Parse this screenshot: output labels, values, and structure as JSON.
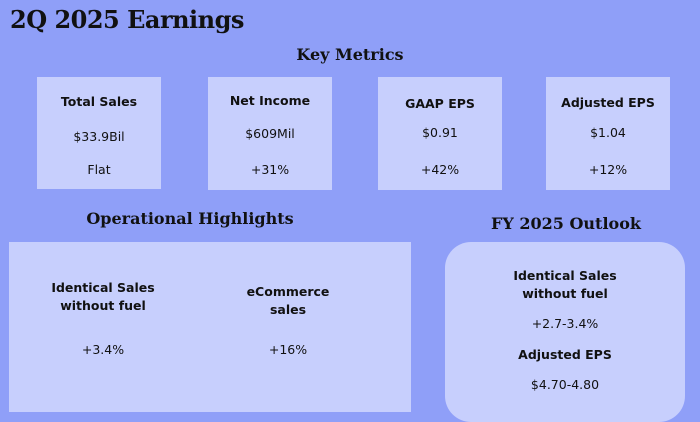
{
  "title": "2Q 2025 Earnings",
  "key_metrics": {
    "heading": "Key Metrics",
    "cards": [
      {
        "label": "Total Sales",
        "value": "$33.9Bil",
        "change": "Flat"
      },
      {
        "label": "Net Income",
        "value": "$609Mil",
        "change": "+31%"
      },
      {
        "label": "GAAP EPS",
        "value": "$0.91",
        "change": "+42%"
      },
      {
        "label": "Adjusted EPS",
        "value": "$1.04",
        "change": "+12%"
      }
    ]
  },
  "operational": {
    "heading": "Operational Highlights",
    "items": [
      {
        "label_line1": "Identical Sales",
        "label_line2": "without fuel",
        "value": "+3.4%"
      },
      {
        "label_line1": "eCommerce",
        "label_line2": "sales",
        "value": "+16%"
      }
    ]
  },
  "outlook": {
    "heading": "FY 2025 Outlook",
    "items": [
      {
        "label_line1": "Identical Sales",
        "label_line2": "without fuel",
        "value": "+2.7-3.4%"
      },
      {
        "label_line1": "Adjusted EPS",
        "value": "$4.70-4.80"
      }
    ]
  },
  "colors": {
    "background": "#8f9ff8",
    "card": "#c7cffd"
  }
}
